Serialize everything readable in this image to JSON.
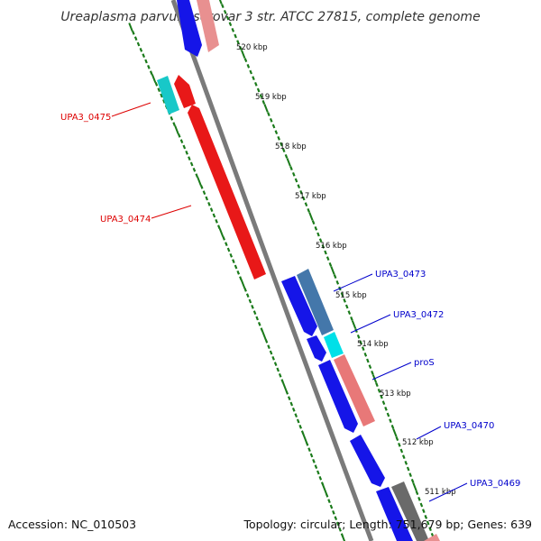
{
  "title": "Ureaplasma parvum serovar 3 str. ATCC 27815, complete genome",
  "footer": {
    "accession": "Accession: NC_010503",
    "summary": "Topology: circular; Length: 751,679 bp; Genes: 639"
  },
  "colors": {
    "backbone": "#7a7a7a",
    "tick": "#1a7a1a",
    "reverse_label": "#dd0000",
    "forward_label": "#0000cc"
  },
  "ticks": [
    {
      "label": "520 kbp",
      "kbp": 520
    },
    {
      "label": "519 kbp",
      "kbp": 519
    },
    {
      "label": "518 kbp",
      "kbp": 518
    },
    {
      "label": "517 kbp",
      "kbp": 517
    },
    {
      "label": "516 kbp",
      "kbp": 516
    },
    {
      "label": "515 kbp",
      "kbp": 515
    },
    {
      "label": "514 kbp",
      "kbp": 514
    },
    {
      "label": "513 kbp",
      "kbp": 513
    },
    {
      "label": "512 kbp",
      "kbp": 512
    },
    {
      "label": "511 kbp",
      "kbp": 511
    }
  ],
  "labels": {
    "UPA3_0475": "UPA3_0475",
    "UPA3_0474": "UPA3_0474",
    "UPA3_0473": "UPA3_0473",
    "UPA3_0472": "UPA3_0472",
    "proS": "proS",
    "UPA3_0470": "UPA3_0470",
    "UPA3_0469": "UPA3_0469"
  }
}
